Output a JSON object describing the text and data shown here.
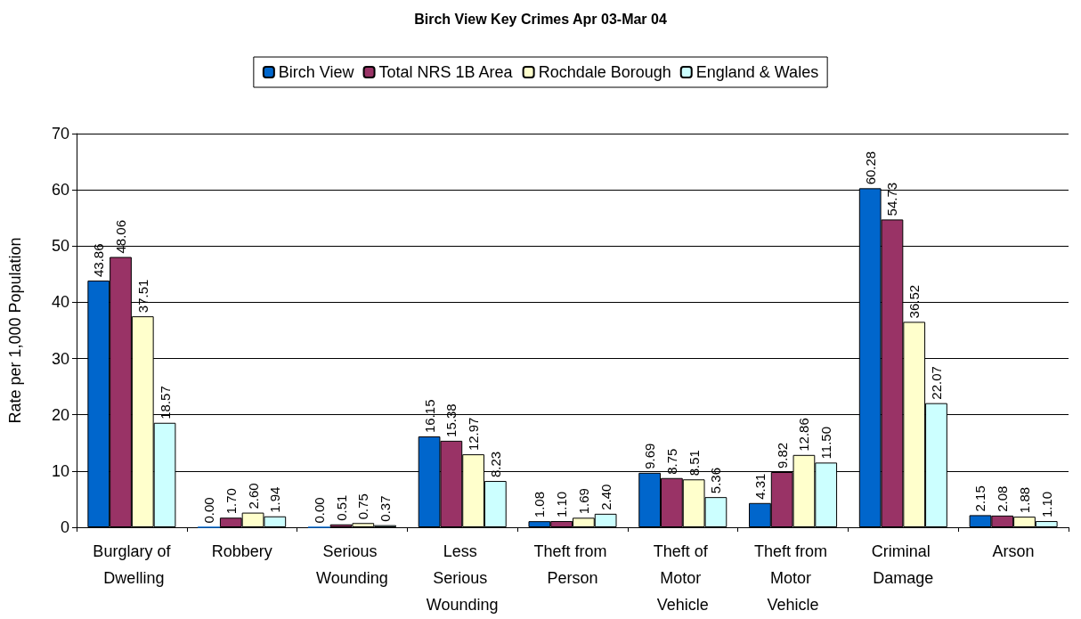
{
  "chart_data": {
    "type": "bar",
    "title": "Birch View Key Crimes Apr 03-Mar 04",
    "ylabel": "Rate per 1,000 Population",
    "categories": [
      "Burglary of Dwelling",
      "Robbery",
      "Serious Wounding",
      "Less Serious Wounding",
      "Theft from Person",
      "Theft of Motor Vehicle",
      "Theft from Motor Vehicle",
      "Criminal Damage",
      "Arson"
    ],
    "series": [
      {
        "name": "Birch View",
        "color": "#0066cc",
        "values": [
          43.86,
          0.0,
          0.0,
          16.15,
          1.08,
          9.69,
          4.31,
          60.28,
          2.15
        ],
        "value_labels": [
          "43.86",
          "0.00",
          "0.00",
          "16.15",
          "1.08",
          "9.69",
          "4.31",
          "60.28",
          "2.15"
        ]
      },
      {
        "name": "Total NRS 1B Area",
        "color": "#993366",
        "values": [
          48.06,
          1.7,
          0.51,
          15.38,
          1.1,
          8.75,
          9.82,
          54.73,
          2.08
        ],
        "value_labels": [
          "48.06",
          "1.70",
          "0.51",
          "15.38",
          "1.10",
          "8.75",
          "9.82",
          "54.73",
          "2.08"
        ]
      },
      {
        "name": "Rochdale Borough",
        "color": "#ffffcc",
        "values": [
          37.51,
          2.6,
          0.75,
          12.97,
          1.69,
          8.51,
          12.86,
          36.52,
          1.88
        ],
        "value_labels": [
          "37.51",
          "2.60",
          "0.75",
          "12.97",
          "1.69",
          "8.51",
          "12.86",
          "36.52",
          "1.88"
        ]
      },
      {
        "name": "England & Wales",
        "color": "#ccffff",
        "values": [
          18.57,
          1.94,
          0.37,
          8.23,
          2.4,
          5.36,
          11.5,
          22.07,
          1.1
        ],
        "value_labels": [
          "18.57",
          "1.94",
          "0.37",
          "8.23",
          "2.40",
          "5.36",
          "11.50",
          "22.07",
          "1.10"
        ]
      }
    ],
    "ylim": [
      0,
      70
    ],
    "yticks": [
      0,
      10,
      20,
      30,
      40,
      50,
      60,
      70
    ],
    "grid": "y",
    "legend": "top"
  }
}
